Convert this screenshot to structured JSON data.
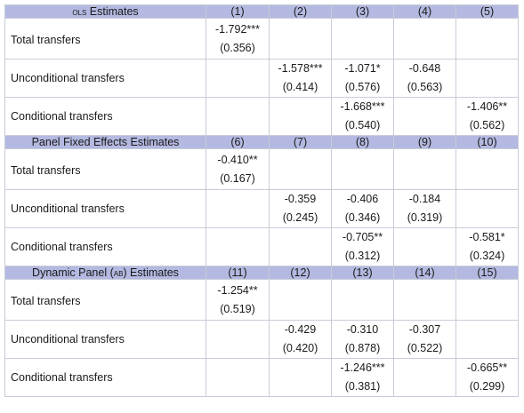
{
  "column_numbers": {
    "ols": [
      "(1)",
      "(2)",
      "(3)",
      "(4)",
      "(5)"
    ],
    "fe": [
      "(6)",
      "(7)",
      "(8)",
      "(9)",
      "(10)"
    ],
    "ab": [
      "(11)",
      "(12)",
      "(13)",
      "(14)",
      "(15)"
    ]
  },
  "sections": {
    "ols": {
      "title_prefix": "",
      "title_smallcaps": "OLS",
      "title_suffix": " Estimates",
      "rows": {
        "total": {
          "label": "Total transfers",
          "coef": [
            "-1.792***",
            "",
            "",
            "",
            ""
          ],
          "se": [
            "(0.356)",
            "",
            "",
            "",
            ""
          ]
        },
        "unconditional": {
          "label": "Unconditional transfers",
          "coef": [
            "",
            "-1.578***",
            "-1.071*",
            "-0.648",
            ""
          ],
          "se": [
            "",
            "(0.414)",
            "(0.576)",
            "(0.563)",
            ""
          ]
        },
        "conditional": {
          "label": "Conditional transfers",
          "coef": [
            "",
            "",
            "-1.668***",
            "",
            "-1.406**"
          ],
          "se": [
            "",
            "",
            "(0.540)",
            "",
            "(0.562)"
          ]
        }
      }
    },
    "fe": {
      "title_prefix": "Panel Fixed Effects Estimates",
      "title_smallcaps": "",
      "title_suffix": "",
      "rows": {
        "total": {
          "label": "Total transfers",
          "coef": [
            "-0.410**",
            "",
            "",
            "",
            ""
          ],
          "se": [
            "(0.167)",
            "",
            "",
            "",
            ""
          ]
        },
        "unconditional": {
          "label": "Unconditional transfers",
          "coef": [
            "",
            "-0.359",
            "-0.406",
            "-0.184",
            ""
          ],
          "se": [
            "",
            "(0.245)",
            "(0.346)",
            "(0.319)",
            ""
          ]
        },
        "conditional": {
          "label": "Conditional transfers",
          "coef": [
            "",
            "",
            "-0.705**",
            "",
            "-0.581*"
          ],
          "se": [
            "",
            "",
            "(0.312)",
            "",
            "(0.324)"
          ]
        }
      }
    },
    "ab": {
      "title_prefix": "Dynamic Panel (",
      "title_smallcaps": "AB",
      "title_suffix": ") Estimates",
      "rows": {
        "total": {
          "label": "Total transfers",
          "coef": [
            "-1.254**",
            "",
            "",
            "",
            ""
          ],
          "se": [
            "(0.519)",
            "",
            "",
            "",
            ""
          ]
        },
        "unconditional": {
          "label": "Unconditional transfers",
          "coef": [
            "",
            "-0.429",
            "-0.310",
            "-0.307",
            ""
          ],
          "se": [
            "",
            "(0.420)",
            "(0.878)",
            "(0.522)",
            ""
          ]
        },
        "conditional": {
          "label": "Conditional transfers",
          "coef": [
            "",
            "",
            "-1.246***",
            "",
            "-0.665**"
          ],
          "se": [
            "",
            "",
            "(0.381)",
            "",
            "(0.299)"
          ]
        }
      }
    }
  }
}
